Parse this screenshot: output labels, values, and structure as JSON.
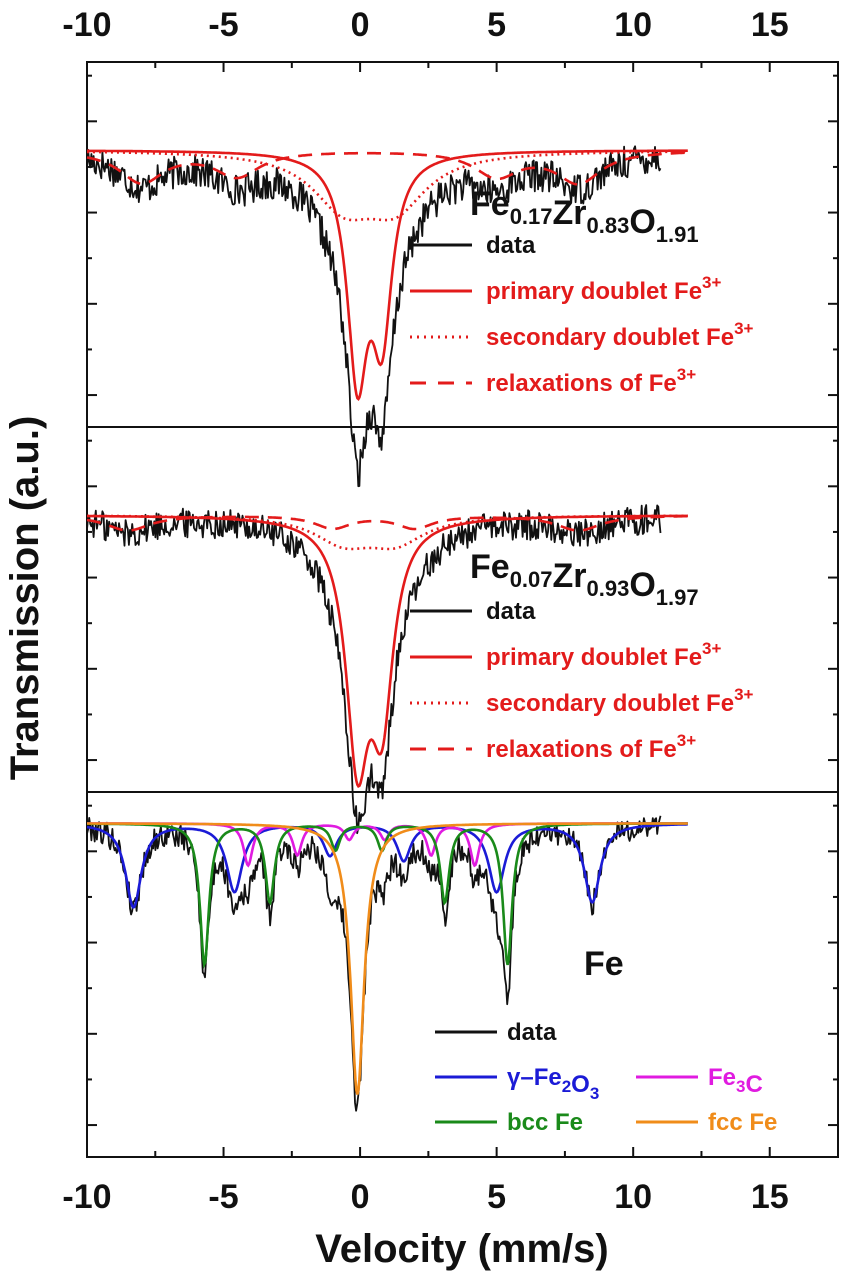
{
  "chart_data": {
    "type": "line",
    "xlabel": "Velocity (mm/s)",
    "ylabel": "Transmission (a.u.)",
    "xlim": [
      -10,
      17.5
    ],
    "xticks": [
      "-10",
      "-5",
      "0",
      "5",
      "10",
      "15"
    ],
    "xtick_values": [
      -10,
      -5,
      0,
      5,
      10,
      15
    ],
    "panels": [
      {
        "id": "top",
        "sample_label": {
          "main": [
            "Fe",
            "Zr",
            "O"
          ],
          "subs": [
            "0.17",
            "0.83",
            "1.91"
          ]
        },
        "ylim": [
          0.78,
          1.07
        ],
        "data_range": [
          -10,
          11
        ],
        "baseline": 1.0,
        "noise": 0.013,
        "legend": [
          {
            "label": "data",
            "sup": "",
            "color": "#111111",
            "dash": "solid"
          },
          {
            "label": "primary doublet Fe",
            "sup": "3+",
            "color": "#e31b1b",
            "dash": "solid"
          },
          {
            "label": "secondary doublet Fe",
            "sup": "3+",
            "color": "#e31b1b",
            "dash": "dot"
          },
          {
            "label": "relaxations of Fe",
            "sup": "3+",
            "color": "#e31b1b",
            "dash": "dash"
          }
        ],
        "components": [
          {
            "name": "primary doublet Fe3+",
            "style": "solid",
            "color": "#e31b1b",
            "lines": [
              {
                "center": -0.1,
                "depth": 0.17,
                "hwhm": 0.45
              },
              {
                "center": 0.8,
                "depth": 0.135,
                "hwhm": 0.45
              }
            ]
          },
          {
            "name": "secondary doublet Fe3+",
            "style": "dot",
            "color": "#e31b1b",
            "lines": [
              {
                "center": -0.6,
                "depth": 0.04,
                "hwhm": 1.4
              },
              {
                "center": 1.3,
                "depth": 0.04,
                "hwhm": 1.4
              }
            ]
          },
          {
            "name": "relaxations of Fe3+",
            "style": "dash",
            "color": "#e31b1b",
            "lines": [
              {
                "center": -8.0,
                "depth": 0.025,
                "hwhm": 1.0
              },
              {
                "center": -4.5,
                "depth": 0.02,
                "hwhm": 1.0
              },
              {
                "center": 5.0,
                "depth": 0.02,
                "hwhm": 1.0
              },
              {
                "center": 8.0,
                "depth": 0.025,
                "hwhm": 1.0
              }
            ]
          }
        ]
      },
      {
        "id": "middle",
        "sample_label": {
          "main": [
            "Fe",
            "Zr",
            "O"
          ],
          "subs": [
            "0.07",
            "0.93",
            "1.97"
          ]
        },
        "ylim": [
          0.78,
          1.07
        ],
        "data_range": [
          -10,
          11
        ],
        "baseline": 1.0,
        "noise": 0.012,
        "legend": [
          {
            "label": "data",
            "sup": "",
            "color": "#111111",
            "dash": "solid"
          },
          {
            "label": "primary doublet Fe",
            "sup": "3+",
            "color": "#e31b1b",
            "dash": "solid"
          },
          {
            "label": "secondary doublet Fe",
            "sup": "3+",
            "color": "#e31b1b",
            "dash": "dot"
          },
          {
            "label": "relaxations of Fe",
            "sup": "3+",
            "color": "#e31b1b",
            "dash": "dash"
          }
        ],
        "components": [
          {
            "name": "primary doublet Fe3+",
            "style": "solid",
            "color": "#e31b1b",
            "lines": [
              {
                "center": -0.1,
                "depth": 0.18,
                "hwhm": 0.5
              },
              {
                "center": 0.8,
                "depth": 0.145,
                "hwhm": 0.5
              }
            ]
          },
          {
            "name": "secondary doublet Fe3+",
            "style": "dot",
            "color": "#e31b1b",
            "lines": [
              {
                "center": -0.6,
                "depth": 0.02,
                "hwhm": 1.3
              },
              {
                "center": 1.3,
                "depth": 0.02,
                "hwhm": 1.3
              }
            ]
          },
          {
            "name": "relaxations of Fe3+",
            "style": "dash",
            "color": "#e31b1b",
            "lines": [
              {
                "center": -8.5,
                "depth": 0.012,
                "hwhm": 1.0
              },
              {
                "center": -1.0,
                "depth": 0.01,
                "hwhm": 0.8
              },
              {
                "center": 2.0,
                "depth": 0.01,
                "hwhm": 0.8
              },
              {
                "center": 8.0,
                "depth": 0.012,
                "hwhm": 1.0
              }
            ]
          }
        ]
      },
      {
        "id": "bottom",
        "sample_label": {
          "main": [
            "Fe"
          ],
          "subs": [
            ""
          ]
        },
        "ylim": [
          0.68,
          1.03
        ],
        "data_range": [
          -10,
          11
        ],
        "baseline": 1.0,
        "noise": 0.012,
        "legend": [
          {
            "label": "data",
            "sub_html": [
              [
                "data",
                ""
              ]
            ],
            "color": "#111111",
            "dash": "solid"
          },
          {
            "label": "γ–Fe2O3",
            "sub_html": [
              [
                "γ–Fe",
                "2"
              ],
              [
                "O",
                "3"
              ]
            ],
            "color": "#1b1bd6",
            "dash": "solid"
          },
          {
            "label": "Fe3C",
            "sub_html": [
              [
                "Fe",
                "3"
              ],
              [
                "C",
                ""
              ]
            ],
            "color": "#e01be0",
            "dash": "solid"
          },
          {
            "label": "bcc Fe",
            "sub_html": [
              [
                "bcc Fe",
                ""
              ]
            ],
            "color": "#1a8a1a",
            "dash": "solid"
          },
          {
            "label": "fcc Fe",
            "sub_html": [
              [
                "fcc Fe",
                ""
              ]
            ],
            "color": "#f08c1a",
            "dash": "solid"
          }
        ],
        "components": [
          {
            "name": "γ–Fe2O3",
            "style": "solid",
            "color": "#1b1bd6",
            "lines": [
              {
                "center": -8.3,
                "depth": 0.08,
                "hwhm": 0.35
              },
              {
                "center": -4.6,
                "depth": 0.065,
                "hwhm": 0.35
              },
              {
                "center": -1.1,
                "depth": 0.03,
                "hwhm": 0.3
              },
              {
                "center": 1.6,
                "depth": 0.035,
                "hwhm": 0.3
              },
              {
                "center": 5.0,
                "depth": 0.065,
                "hwhm": 0.35
              },
              {
                "center": 8.5,
                "depth": 0.075,
                "hwhm": 0.35
              }
            ]
          },
          {
            "name": "Fe3C",
            "style": "solid",
            "color": "#e01be0",
            "lines": [
              {
                "center": -4.1,
                "depth": 0.04,
                "hwhm": 0.2
              },
              {
                "center": -2.3,
                "depth": 0.03,
                "hwhm": 0.2
              },
              {
                "center": -0.4,
                "depth": 0.015,
                "hwhm": 0.2
              },
              {
                "center": 0.9,
                "depth": 0.015,
                "hwhm": 0.2
              },
              {
                "center": 2.6,
                "depth": 0.03,
                "hwhm": 0.2
              },
              {
                "center": 4.2,
                "depth": 0.04,
                "hwhm": 0.2
              }
            ]
          },
          {
            "name": "bcc Fe",
            "style": "solid",
            "color": "#1a8a1a",
            "lines": [
              {
                "center": -5.7,
                "depth": 0.135,
                "hwhm": 0.2
              },
              {
                "center": -3.3,
                "depth": 0.075,
                "hwhm": 0.2
              },
              {
                "center": -0.9,
                "depth": 0.025,
                "hwhm": 0.2
              },
              {
                "center": 0.8,
                "depth": 0.025,
                "hwhm": 0.2
              },
              {
                "center": 3.1,
                "depth": 0.075,
                "hwhm": 0.2
              },
              {
                "center": 5.4,
                "depth": 0.135,
                "hwhm": 0.2
              }
            ]
          },
          {
            "name": "fcc Fe",
            "style": "solid",
            "color": "#f08c1a",
            "lines": [
              {
                "center": -0.1,
                "depth": 0.26,
                "hwhm": 0.3
              }
            ]
          }
        ]
      }
    ]
  }
}
